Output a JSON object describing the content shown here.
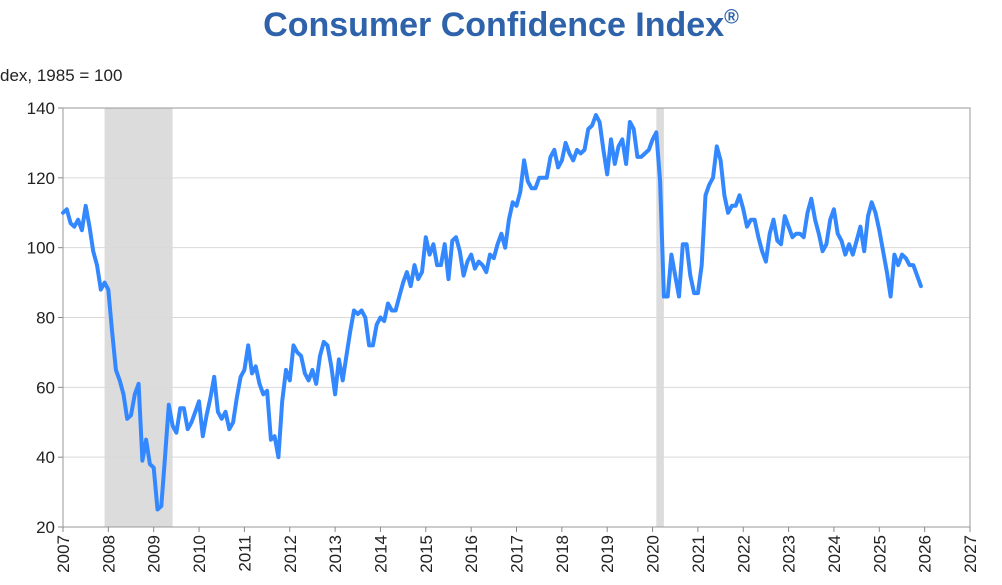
{
  "chart_data": {
    "type": "line",
    "title": "Consumer Confidence Index",
    "title_mark": "®",
    "ylabel": "dex, 1985 = 100",
    "xlabel": "",
    "xlim": [
      2007,
      2027
    ],
    "ylim": [
      20,
      140
    ],
    "yticks": [
      20,
      40,
      60,
      80,
      100,
      120,
      140
    ],
    "xticks": [
      "2007",
      "2008",
      "2009",
      "2010",
      "2011",
      "2012",
      "2013",
      "2014",
      "2015",
      "2016",
      "2017",
      "2018",
      "2019",
      "2020",
      "2021",
      "2022",
      "2023",
      "2024",
      "2025",
      "2026",
      "2027"
    ],
    "grid": "horizontal",
    "line_color": "#3388FF",
    "recession_color": "#DCDCDC",
    "recessions": [
      [
        "2007-12",
        "2009-06"
      ],
      [
        "2020-02",
        "2020-04"
      ]
    ],
    "series": [
      {
        "x": [
          "2007-01",
          "2007-02",
          "2007-03",
          "2007-04",
          "2007-05",
          "2007-06",
          "2007-07",
          "2007-08",
          "2007-09",
          "2007-10",
          "2007-11",
          "2007-12",
          "2008-01",
          "2008-02",
          "2008-03",
          "2008-04",
          "2008-05",
          "2008-06",
          "2008-07",
          "2008-08",
          "2008-09",
          "2008-10",
          "2008-11",
          "2008-12",
          "2009-01",
          "2009-02",
          "2009-03",
          "2009-04",
          "2009-05",
          "2009-06",
          "2009-07",
          "2009-08",
          "2009-09",
          "2009-10",
          "2009-11",
          "2009-12",
          "2010-01",
          "2010-02",
          "2010-03",
          "2010-04",
          "2010-05",
          "2010-06",
          "2010-07",
          "2010-08",
          "2010-09",
          "2010-10",
          "2010-11",
          "2010-12",
          "2011-01",
          "2011-02",
          "2011-03",
          "2011-04",
          "2011-05",
          "2011-06",
          "2011-07",
          "2011-08",
          "2011-09",
          "2011-10",
          "2011-11",
          "2011-12",
          "2012-01",
          "2012-02",
          "2012-03",
          "2012-04",
          "2012-05",
          "2012-06",
          "2012-07",
          "2012-08",
          "2012-09",
          "2012-10",
          "2012-11",
          "2012-12",
          "2013-01",
          "2013-02",
          "2013-03",
          "2013-04",
          "2013-05",
          "2013-06",
          "2013-07",
          "2013-08",
          "2013-09",
          "2013-10",
          "2013-11",
          "2013-12",
          "2014-01",
          "2014-02",
          "2014-03",
          "2014-04",
          "2014-05",
          "2014-06",
          "2014-07",
          "2014-08",
          "2014-09",
          "2014-10",
          "2014-11",
          "2014-12",
          "2015-01",
          "2015-02",
          "2015-03",
          "2015-04",
          "2015-05",
          "2015-06",
          "2015-07",
          "2015-08",
          "2015-09",
          "2015-10",
          "2015-11",
          "2015-12",
          "2016-01",
          "2016-02",
          "2016-03",
          "2016-04",
          "2016-05",
          "2016-06",
          "2016-07",
          "2016-08",
          "2016-09",
          "2016-10",
          "2016-11",
          "2016-12",
          "2017-01",
          "2017-02",
          "2017-03",
          "2017-04",
          "2017-05",
          "2017-06",
          "2017-07",
          "2017-08",
          "2017-09",
          "2017-10",
          "2017-11",
          "2017-12",
          "2018-01",
          "2018-02",
          "2018-03",
          "2018-04",
          "2018-05",
          "2018-06",
          "2018-07",
          "2018-08",
          "2018-09",
          "2018-10",
          "2018-11",
          "2018-12",
          "2019-01",
          "2019-02",
          "2019-03",
          "2019-04",
          "2019-05",
          "2019-06",
          "2019-07",
          "2019-08",
          "2019-09",
          "2019-10",
          "2019-11",
          "2019-12",
          "2020-01",
          "2020-02",
          "2020-03",
          "2020-04",
          "2020-05",
          "2020-06",
          "2020-07",
          "2020-08",
          "2020-09",
          "2020-10",
          "2020-11",
          "2020-12",
          "2021-01",
          "2021-02",
          "2021-03",
          "2021-04",
          "2021-05",
          "2021-06",
          "2021-07",
          "2021-08",
          "2021-09",
          "2021-10",
          "2021-11",
          "2021-12",
          "2022-01",
          "2022-02",
          "2022-03",
          "2022-04",
          "2022-05",
          "2022-06",
          "2022-07",
          "2022-08",
          "2022-09",
          "2022-10",
          "2022-11",
          "2022-12",
          "2023-01",
          "2023-02",
          "2023-03",
          "2023-04",
          "2023-05",
          "2023-06",
          "2023-07",
          "2023-08",
          "2023-09",
          "2023-10",
          "2023-11",
          "2023-12",
          "2024-01",
          "2024-02",
          "2024-03",
          "2024-04",
          "2024-05",
          "2024-06",
          "2024-07",
          "2024-08",
          "2024-09",
          "2024-10",
          "2024-11",
          "2024-12",
          "2025-01",
          "2025-02",
          "2025-03",
          "2025-04",
          "2025-05",
          "2025-06",
          "2025-07",
          "2025-08",
          "2025-09",
          "2025-10",
          "2025-11",
          "2025-12"
        ],
        "values": [
          110,
          111,
          107,
          106,
          108,
          105,
          112,
          106,
          99,
          95,
          88,
          90,
          88,
          76,
          65,
          62,
          58,
          51,
          52,
          58,
          61,
          39,
          45,
          38,
          37,
          25,
          26,
          40,
          55,
          49,
          47,
          54,
          54,
          48,
          50,
          53,
          56,
          46,
          52,
          57,
          63,
          53,
          51,
          53,
          48,
          50,
          57,
          63,
          65,
          72,
          64,
          66,
          61,
          58,
          59,
          45,
          46,
          40,
          56,
          65,
          62,
          72,
          70,
          69,
          64,
          62,
          65,
          61,
          69,
          73,
          72,
          66,
          58,
          68,
          62,
          69,
          76,
          82,
          81,
          82,
          80,
          72,
          72,
          78,
          80,
          79,
          84,
          82,
          82,
          86,
          90,
          93,
          89,
          95,
          91,
          93,
          103,
          98,
          101,
          95,
          95,
          101,
          91,
          102,
          103,
          99,
          92,
          96,
          98,
          94,
          96,
          95,
          93,
          98,
          97,
          101,
          104,
          100,
          108,
          113,
          112,
          116,
          125,
          119,
          117,
          117,
          120,
          120,
          120,
          126,
          128,
          123,
          125,
          130,
          127,
          125,
          128,
          127,
          128,
          134,
          135,
          138,
          136,
          128,
          121,
          131,
          124,
          129,
          131,
          124,
          136,
          134,
          126,
          126,
          127,
          128,
          131,
          133,
          119,
          86,
          86,
          98,
          92,
          86,
          101,
          101,
          92,
          87,
          87,
          95,
          115,
          118,
          120,
          129,
          125,
          115,
          110,
          112,
          112,
          115,
          111,
          106,
          108,
          108,
          103,
          99,
          96,
          104,
          108,
          102,
          101,
          109,
          106,
          103,
          104,
          104,
          103,
          110,
          114,
          108,
          104,
          99,
          101,
          108,
          111,
          104,
          102,
          98,
          101,
          98,
          102,
          106,
          99,
          109,
          113,
          110,
          105,
          99,
          93,
          86,
          98,
          95,
          98,
          97,
          95,
          95,
          92,
          89
        ]
      }
    ]
  }
}
